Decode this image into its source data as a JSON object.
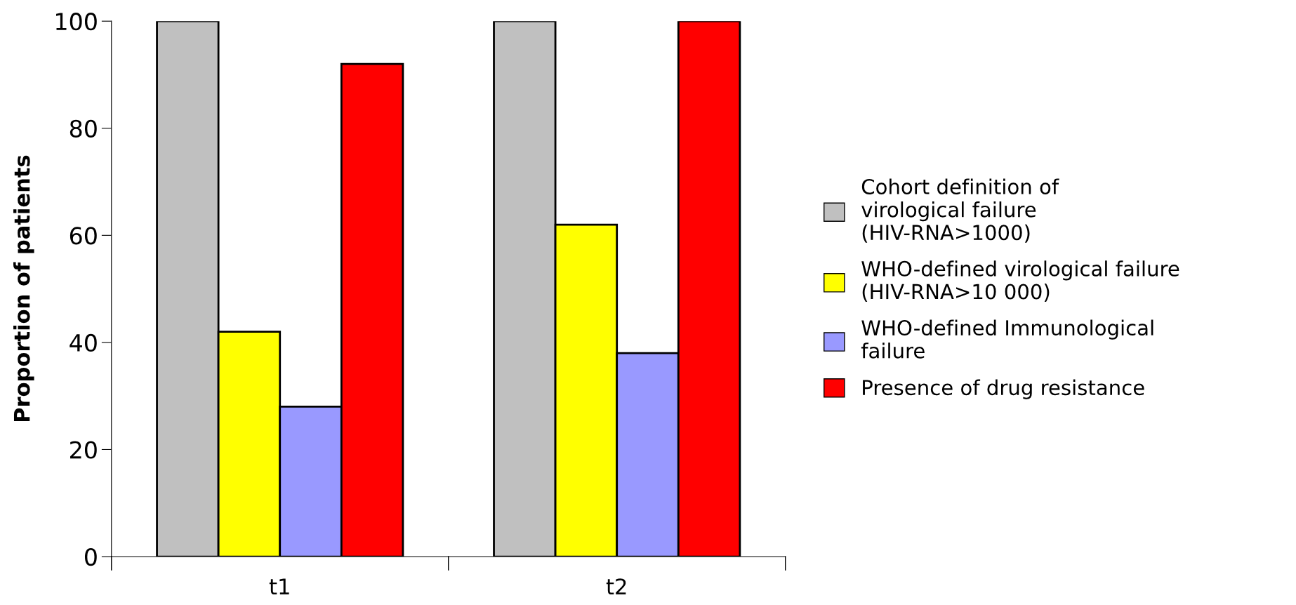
{
  "chart_data": {
    "type": "bar",
    "ylabel": "Proportion of patients",
    "categories": [
      "t1",
      "t2"
    ],
    "series": [
      {
        "name": "Cohort definition of virological failure (HIV-RNA>1000)",
        "color": "#c0c0c0",
        "values": [
          100,
          100
        ]
      },
      {
        "name": "WHO-defined virological failure (HIV-RNA>10 000)",
        "color": "#ffff00",
        "values": [
          42,
          62
        ]
      },
      {
        "name": "WHO-defined Immunological failure",
        "color": "#9999ff",
        "values": [
          28,
          38
        ]
      },
      {
        "name": "Presence of drug resistance",
        "color": "#ff0000",
        "values": [
          92,
          100
        ]
      }
    ],
    "ylim": [
      0,
      100
    ],
    "yticks": [
      0,
      20,
      40,
      60,
      80,
      100
    ],
    "grid": false,
    "legend": "right"
  }
}
